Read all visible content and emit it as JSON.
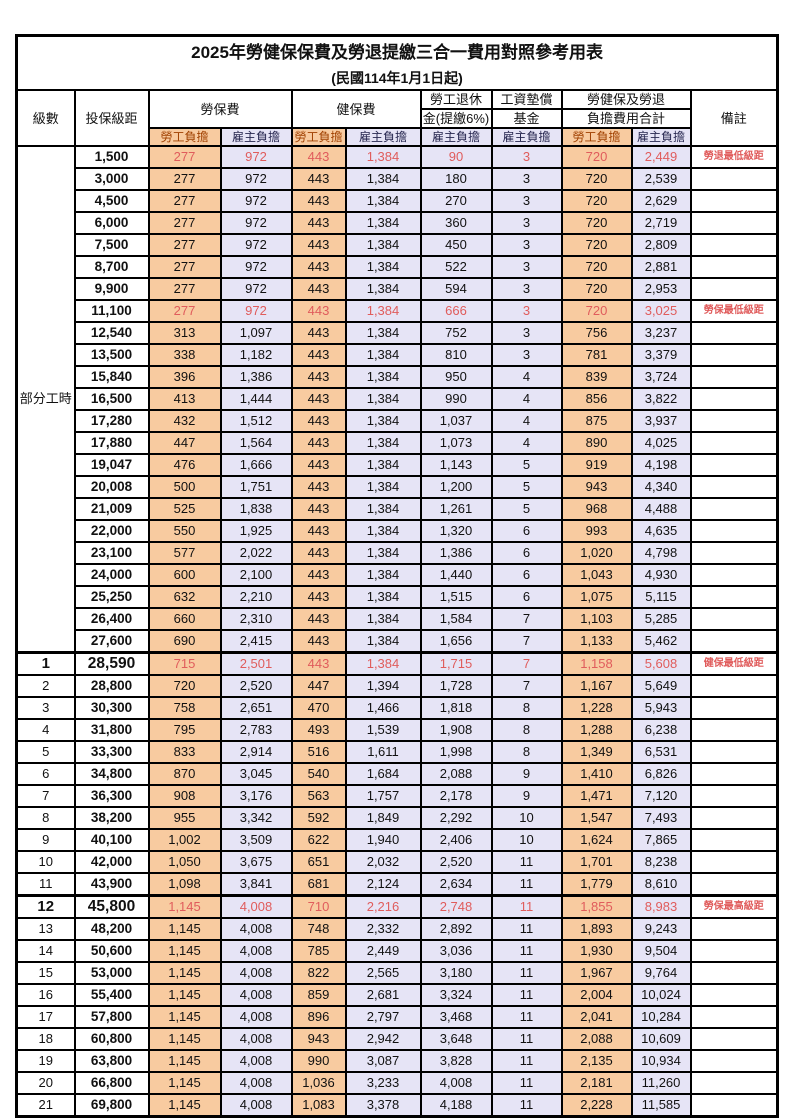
{
  "title": "2025年勞健保保費及勞退提繳三合一費用對照參考用表",
  "subtitle": "(民國114年1月1日起)",
  "header": {
    "level": "級數",
    "bracket": "投保級距",
    "labor_insurance": "勞保費",
    "health_insurance": "健保費",
    "pension_line1": "勞工退休",
    "pension_line2": "金(提繳6%)",
    "wage_fund_line1": "工資墊償",
    "wage_fund_line2": "基金",
    "total_line1": "勞健保及勞退",
    "total_line2": "負擔費用合計",
    "remark": "備註",
    "employee_share": "勞工負擔",
    "employer_share": "雇主負擔"
  },
  "part_time_label": "部分工時",
  "colors": {
    "employee_bg": "#F8CBA0",
    "employer_bg": "#E6E4F6",
    "highlight_text": "#E05C5C"
  },
  "rows": [
    {
      "level": "",
      "bracket": "1,500",
      "v": [
        "277",
        "972",
        "443",
        "1,384",
        "90",
        "3",
        "720",
        "2,449"
      ],
      "remark": "勞退最低級距",
      "hl": true
    },
    {
      "level": "",
      "bracket": "3,000",
      "v": [
        "277",
        "972",
        "443",
        "1,384",
        "180",
        "3",
        "720",
        "2,539"
      ],
      "remark": ""
    },
    {
      "level": "",
      "bracket": "4,500",
      "v": [
        "277",
        "972",
        "443",
        "1,384",
        "270",
        "3",
        "720",
        "2,629"
      ],
      "remark": ""
    },
    {
      "level": "",
      "bracket": "6,000",
      "v": [
        "277",
        "972",
        "443",
        "1,384",
        "360",
        "3",
        "720",
        "2,719"
      ],
      "remark": ""
    },
    {
      "level": "",
      "bracket": "7,500",
      "v": [
        "277",
        "972",
        "443",
        "1,384",
        "450",
        "3",
        "720",
        "2,809"
      ],
      "remark": ""
    },
    {
      "level": "",
      "bracket": "8,700",
      "v": [
        "277",
        "972",
        "443",
        "1,384",
        "522",
        "3",
        "720",
        "2,881"
      ],
      "remark": ""
    },
    {
      "level": "",
      "bracket": "9,900",
      "v": [
        "277",
        "972",
        "443",
        "1,384",
        "594",
        "3",
        "720",
        "2,953"
      ],
      "remark": ""
    },
    {
      "level": "",
      "bracket": "11,100",
      "v": [
        "277",
        "972",
        "443",
        "1,384",
        "666",
        "3",
        "720",
        "3,025"
      ],
      "remark": "勞保最低級距",
      "hl": true
    },
    {
      "level": "",
      "bracket": "12,540",
      "v": [
        "313",
        "1,097",
        "443",
        "1,384",
        "752",
        "3",
        "756",
        "3,237"
      ],
      "remark": ""
    },
    {
      "level": "",
      "bracket": "13,500",
      "v": [
        "338",
        "1,182",
        "443",
        "1,384",
        "810",
        "3",
        "781",
        "3,379"
      ],
      "remark": ""
    },
    {
      "level": "",
      "bracket": "15,840",
      "v": [
        "396",
        "1,386",
        "443",
        "1,384",
        "950",
        "4",
        "839",
        "3,724"
      ],
      "remark": ""
    },
    {
      "level": "",
      "bracket": "16,500",
      "v": [
        "413",
        "1,444",
        "443",
        "1,384",
        "990",
        "4",
        "856",
        "3,822"
      ],
      "remark": ""
    },
    {
      "level": "",
      "bracket": "17,280",
      "v": [
        "432",
        "1,512",
        "443",
        "1,384",
        "1,037",
        "4",
        "875",
        "3,937"
      ],
      "remark": ""
    },
    {
      "level": "",
      "bracket": "17,880",
      "v": [
        "447",
        "1,564",
        "443",
        "1,384",
        "1,073",
        "4",
        "890",
        "4,025"
      ],
      "remark": ""
    },
    {
      "level": "",
      "bracket": "19,047",
      "v": [
        "476",
        "1,666",
        "443",
        "1,384",
        "1,143",
        "5",
        "919",
        "4,198"
      ],
      "remark": ""
    },
    {
      "level": "",
      "bracket": "20,008",
      "v": [
        "500",
        "1,751",
        "443",
        "1,384",
        "1,200",
        "5",
        "943",
        "4,340"
      ],
      "remark": ""
    },
    {
      "level": "",
      "bracket": "21,009",
      "v": [
        "525",
        "1,838",
        "443",
        "1,384",
        "1,261",
        "5",
        "968",
        "4,488"
      ],
      "remark": ""
    },
    {
      "level": "",
      "bracket": "22,000",
      "v": [
        "550",
        "1,925",
        "443",
        "1,384",
        "1,320",
        "6",
        "993",
        "4,635"
      ],
      "remark": ""
    },
    {
      "level": "",
      "bracket": "23,100",
      "v": [
        "577",
        "2,022",
        "443",
        "1,384",
        "1,386",
        "6",
        "1,020",
        "4,798"
      ],
      "remark": ""
    },
    {
      "level": "",
      "bracket": "24,000",
      "v": [
        "600",
        "2,100",
        "443",
        "1,384",
        "1,440",
        "6",
        "1,043",
        "4,930"
      ],
      "remark": ""
    },
    {
      "level": "",
      "bracket": "25,250",
      "v": [
        "632",
        "2,210",
        "443",
        "1,384",
        "1,515",
        "6",
        "1,075",
        "5,115"
      ],
      "remark": ""
    },
    {
      "level": "",
      "bracket": "26,400",
      "v": [
        "660",
        "2,310",
        "443",
        "1,384",
        "1,584",
        "7",
        "1,103",
        "5,285"
      ],
      "remark": ""
    },
    {
      "level": "",
      "bracket": "27,600",
      "v": [
        "690",
        "2,415",
        "443",
        "1,384",
        "1,656",
        "7",
        "1,133",
        "5,462"
      ],
      "remark": ""
    },
    {
      "level": "1",
      "bracket": "28,590",
      "v": [
        "715",
        "2,501",
        "443",
        "1,384",
        "1,715",
        "7",
        "1,158",
        "5,608"
      ],
      "remark": "健保最低級距",
      "hl": true,
      "emph": true
    },
    {
      "level": "2",
      "bracket": "28,800",
      "v": [
        "720",
        "2,520",
        "447",
        "1,394",
        "1,728",
        "7",
        "1,167",
        "5,649"
      ],
      "remark": ""
    },
    {
      "level": "3",
      "bracket": "30,300",
      "v": [
        "758",
        "2,651",
        "470",
        "1,466",
        "1,818",
        "8",
        "1,228",
        "5,943"
      ],
      "remark": ""
    },
    {
      "level": "4",
      "bracket": "31,800",
      "v": [
        "795",
        "2,783",
        "493",
        "1,539",
        "1,908",
        "8",
        "1,288",
        "6,238"
      ],
      "remark": ""
    },
    {
      "level": "5",
      "bracket": "33,300",
      "v": [
        "833",
        "2,914",
        "516",
        "1,611",
        "1,998",
        "8",
        "1,349",
        "6,531"
      ],
      "remark": ""
    },
    {
      "level": "6",
      "bracket": "34,800",
      "v": [
        "870",
        "3,045",
        "540",
        "1,684",
        "2,088",
        "9",
        "1,410",
        "6,826"
      ],
      "remark": ""
    },
    {
      "level": "7",
      "bracket": "36,300",
      "v": [
        "908",
        "3,176",
        "563",
        "1,757",
        "2,178",
        "9",
        "1,471",
        "7,120"
      ],
      "remark": ""
    },
    {
      "level": "8",
      "bracket": "38,200",
      "v": [
        "955",
        "3,342",
        "592",
        "1,849",
        "2,292",
        "10",
        "1,547",
        "7,493"
      ],
      "remark": ""
    },
    {
      "level": "9",
      "bracket": "40,100",
      "v": [
        "1,002",
        "3,509",
        "622",
        "1,940",
        "2,406",
        "10",
        "1,624",
        "7,865"
      ],
      "remark": ""
    },
    {
      "level": "10",
      "bracket": "42,000",
      "v": [
        "1,050",
        "3,675",
        "651",
        "2,032",
        "2,520",
        "11",
        "1,701",
        "8,238"
      ],
      "remark": ""
    },
    {
      "level": "11",
      "bracket": "43,900",
      "v": [
        "1,098",
        "3,841",
        "681",
        "2,124",
        "2,634",
        "11",
        "1,779",
        "8,610"
      ],
      "remark": ""
    },
    {
      "level": "12",
      "bracket": "45,800",
      "v": [
        "1,145",
        "4,008",
        "710",
        "2,216",
        "2,748",
        "11",
        "1,855",
        "8,983"
      ],
      "remark": "勞保最高級距",
      "hl": true,
      "emph": true
    },
    {
      "level": "13",
      "bracket": "48,200",
      "v": [
        "1,145",
        "4,008",
        "748",
        "2,332",
        "2,892",
        "11",
        "1,893",
        "9,243"
      ],
      "remark": ""
    },
    {
      "level": "14",
      "bracket": "50,600",
      "v": [
        "1,145",
        "4,008",
        "785",
        "2,449",
        "3,036",
        "11",
        "1,930",
        "9,504"
      ],
      "remark": ""
    },
    {
      "level": "15",
      "bracket": "53,000",
      "v": [
        "1,145",
        "4,008",
        "822",
        "2,565",
        "3,180",
        "11",
        "1,967",
        "9,764"
      ],
      "remark": ""
    },
    {
      "level": "16",
      "bracket": "55,400",
      "v": [
        "1,145",
        "4,008",
        "859",
        "2,681",
        "3,324",
        "11",
        "2,004",
        "10,024"
      ],
      "remark": ""
    },
    {
      "level": "17",
      "bracket": "57,800",
      "v": [
        "1,145",
        "4,008",
        "896",
        "2,797",
        "3,468",
        "11",
        "2,041",
        "10,284"
      ],
      "remark": ""
    },
    {
      "level": "18",
      "bracket": "60,800",
      "v": [
        "1,145",
        "4,008",
        "943",
        "2,942",
        "3,648",
        "11",
        "2,088",
        "10,609"
      ],
      "remark": ""
    },
    {
      "level": "19",
      "bracket": "63,800",
      "v": [
        "1,145",
        "4,008",
        "990",
        "3,087",
        "3,828",
        "11",
        "2,135",
        "10,934"
      ],
      "remark": ""
    },
    {
      "level": "20",
      "bracket": "66,800",
      "v": [
        "1,145",
        "4,008",
        "1,036",
        "3,233",
        "4,008",
        "11",
        "2,181",
        "11,260"
      ],
      "remark": ""
    },
    {
      "level": "21",
      "bracket": "69,800",
      "v": [
        "1,145",
        "4,008",
        "1,083",
        "3,378",
        "4,188",
        "11",
        "2,228",
        "11,585"
      ],
      "remark": ""
    }
  ]
}
